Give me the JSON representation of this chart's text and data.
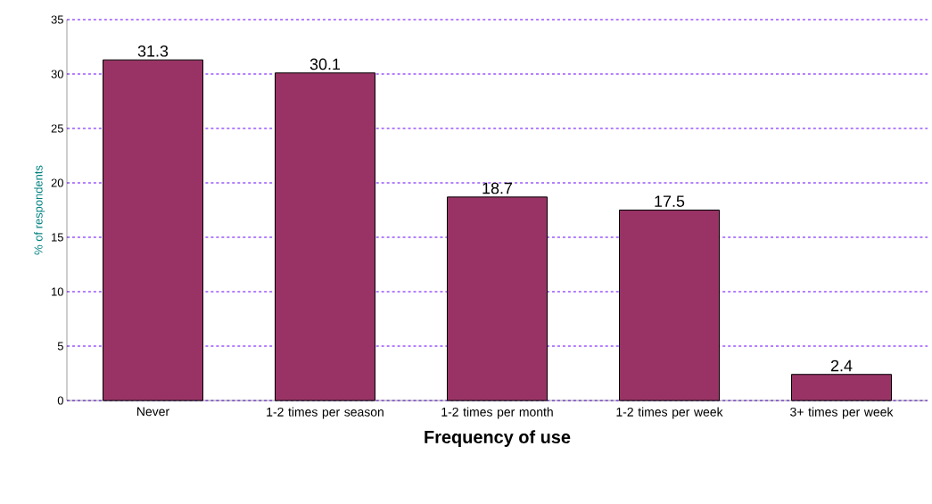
{
  "chart_data": {
    "type": "bar",
    "xlabel": "Frequency of use",
    "ylabel": "% of respondents",
    "categories": [
      "Never",
      "1-2 times per season",
      "1-2 times per month",
      "1-2 times per week",
      "3+ times per week"
    ],
    "values": [
      31.3,
      30.1,
      18.7,
      17.5,
      2.4
    ],
    "color": "#993366",
    "ylim": [
      0,
      35
    ],
    "yticks": [
      0,
      5,
      10,
      15,
      20,
      25,
      30,
      35
    ],
    "grid": "y",
    "data_labels": true
  }
}
